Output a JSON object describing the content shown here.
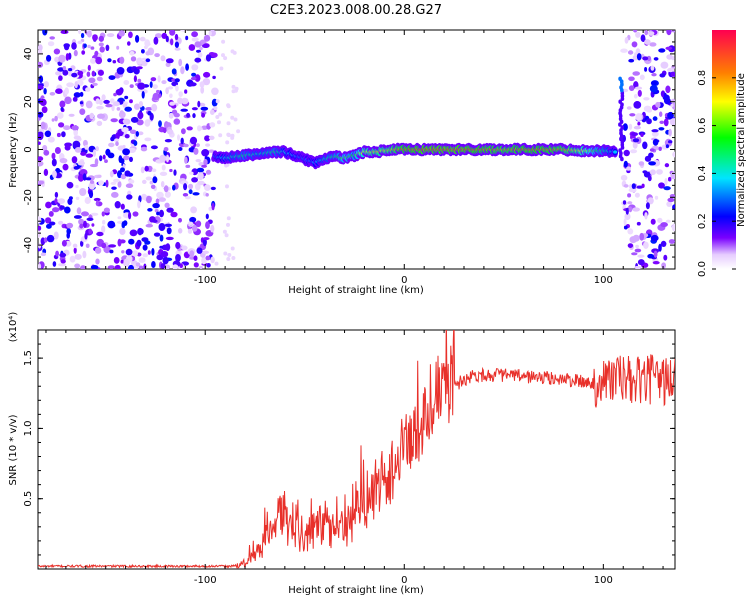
{
  "title": "C2E3.2023.008.00.28.G27",
  "chart_data": [
    {
      "type": "heatmap",
      "xlabel": "Height of straight line (km)",
      "ylabel": "Frequency (Hz)",
      "xlim": [
        -184,
        136
      ],
      "ylim": [
        -50,
        50
      ],
      "x_ticks": [
        -100,
        0,
        100
      ],
      "y_ticks": [
        -40,
        -20,
        0,
        20,
        40
      ],
      "colorbar": {
        "label": "Normalized spectral amplitude",
        "range": [
          0,
          1
        ],
        "ticks": [
          0.0,
          0.2,
          0.4,
          0.6,
          0.8
        ],
        "colormap": [
          "#ffffff",
          "#e6ccff",
          "#7a00ff",
          "#0000ff",
          "#00e5ff",
          "#00ff00",
          "#ffff00",
          "#ff8000",
          "#ff0050"
        ]
      },
      "noise_regions": [
        [
          -184,
          -95
        ],
        [
          110,
          136
        ]
      ],
      "ridge": {
        "x": [
          -95,
          -90,
          -85,
          -80,
          -75,
          -70,
          -65,
          -60,
          -55,
          -50,
          -45,
          -40,
          -35,
          -30,
          -25,
          -20,
          -15,
          -10,
          -5,
          0,
          10,
          20,
          30,
          40,
          50,
          60,
          70,
          80,
          90,
          100,
          106
        ],
        "freq": [
          -3,
          -3.5,
          -3,
          -2.5,
          -2,
          -1.5,
          -1,
          -1,
          -2.5,
          -4,
          -5.5,
          -4,
          -3,
          -3.5,
          -2.5,
          -1,
          -1,
          -0.5,
          0,
          0,
          0,
          0,
          0,
          0,
          0,
          0,
          0,
          0,
          -0.5,
          -0.5,
          -1
        ],
        "amplitude": [
          0.3,
          0.4,
          0.45,
          0.5,
          0.45,
          0.45,
          0.5,
          0.4,
          0.35,
          0.3,
          0.35,
          0.45,
          0.5,
          0.6,
          0.55,
          0.7,
          0.75,
          0.75,
          0.8,
          0.9,
          0.95,
          0.95,
          0.95,
          0.9,
          0.85,
          0.9,
          0.9,
          0.85,
          0.7,
          0.5,
          0.35
        ]
      }
    },
    {
      "type": "line",
      "xlabel": "Height of straight line (km)",
      "ylabel": "SNR (10 * v/v)",
      "y_multiplier": "(x10⁴)",
      "xlim": [
        -184,
        136
      ],
      "ylim": [
        0,
        1.7
      ],
      "x_ticks": [
        -100,
        0,
        100
      ],
      "y_ticks": [
        0.5,
        1.0,
        1.5
      ],
      "series": [
        {
          "color": "#e8302a",
          "x": [
            -184,
            -150,
            -120,
            -100,
            -85,
            -80,
            -75,
            -70,
            -65,
            -62,
            -58,
            -55,
            -50,
            -45,
            -40,
            -35,
            -30,
            -25,
            -20,
            -15,
            -10,
            -5,
            0,
            5,
            10,
            15,
            20,
            25,
            30,
            35,
            40,
            50,
            60,
            70,
            80,
            90,
            95,
            100,
            105,
            110,
            115,
            120,
            125,
            130,
            136
          ],
          "y": [
            0.02,
            0.02,
            0.02,
            0.02,
            0.02,
            0.04,
            0.1,
            0.2,
            0.28,
            0.45,
            0.3,
            0.25,
            0.22,
            0.3,
            0.35,
            0.25,
            0.3,
            0.35,
            0.45,
            0.55,
            0.65,
            0.72,
            0.78,
            0.9,
            1.05,
            1.15,
            1.25,
            1.3,
            1.35,
            1.38,
            1.38,
            1.38,
            1.37,
            1.36,
            1.35,
            1.33,
            1.32,
            1.34,
            1.36,
            1.35,
            1.33,
            1.34,
            1.35,
            1.34,
            1.35
          ]
        }
      ]
    }
  ]
}
